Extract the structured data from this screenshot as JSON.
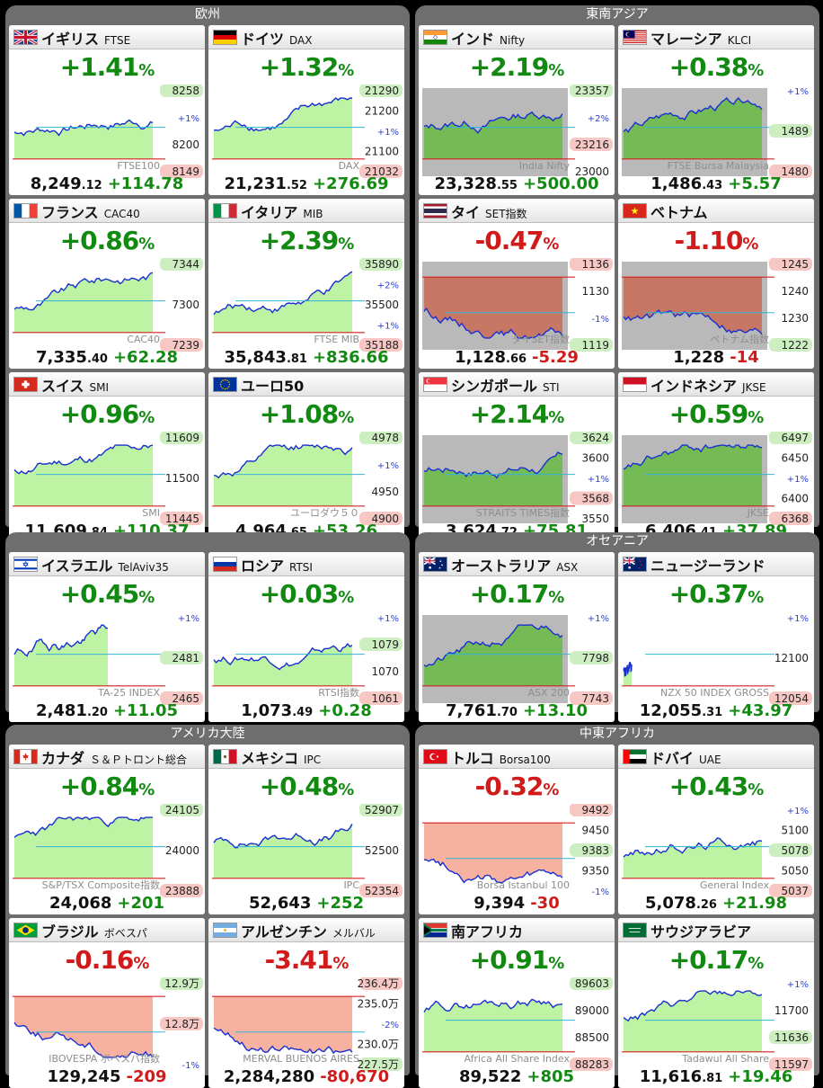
{
  "colors": {
    "up": "#128a12",
    "down": "#d11a1a"
  },
  "sections": [
    {
      "title": "欧州",
      "cards": [
        {
          "name": "イギリス",
          "code": "FTSE",
          "flag": "uk",
          "pct": "+1.41",
          "unit": "%",
          "price_int": "8,249",
          "price_dec": ".12",
          "change": "+114.78",
          "dir": "up",
          "labels": [
            "8258",
            "+1%",
            "8200",
            "8149"
          ],
          "watermark": "FTSE100",
          "series": [
            0.3,
            0.35,
            0.6,
            0.4,
            0.5,
            0.45,
            0.55,
            0.5,
            0.58,
            0.52,
            0.6,
            0.55,
            0.5,
            0.58,
            0.45,
            0.5,
            0.6,
            0.55,
            0.48,
            0.52,
            0.58,
            0.55,
            0.6,
            0.5,
            0.7,
            0.75,
            0.8,
            0.85,
            0.92,
            0.9,
            0.95,
            0.92,
            0.94
          ],
          "base": 0.22
        },
        {
          "name": "ドイツ",
          "code": "DAX",
          "flag": "de",
          "pct": "+1.32",
          "unit": "%",
          "price_int": "21,231",
          "price_dec": ".52",
          "change": "+276.69",
          "dir": "up",
          "labels": [
            "21290",
            "21200",
            "21100",
            "21032"
          ],
          "watermark": "DAX",
          "series": [
            0.5,
            0.6,
            0.75,
            0.55,
            0.7,
            0.85,
            0.65,
            0.9,
            0.7,
            0.6,
            0.8,
            0.65,
            0.55,
            0.45,
            0.3,
            0.5,
            0.65,
            0.55,
            0.7,
            0.8,
            0.6,
            0.75,
            0.65,
            0.55,
            0.7,
            0.85,
            0.9,
            0.8,
            0.75,
            0.82,
            0.78
          ],
          "base": 0.18
        }
      ]
    },
    {
      "title": "東南アジア",
      "cards": [
        {
          "name": "インド",
          "code": "Nifty",
          "flag": "in",
          "pct": "+2.19",
          "unit": "%",
          "price_int": "23,328",
          "price_dec": ".55",
          "change": "+500.00",
          "dir": "up",
          "labels": [
            "23357",
            "+2%",
            "23216",
            "23000"
          ],
          "watermark": "India Nifty",
          "series": [
            0.85,
            0.8,
            0.78,
            0.8,
            0.79,
            0.8,
            0.78,
            0.79,
            0.8,
            0.79,
            0.81,
            0.8,
            0.79,
            0.8,
            0.8,
            0.79,
            0.8,
            0.8,
            0.81
          ],
          "base": 0.0,
          "gray": true,
          "cut": 0.72
        },
        {
          "name": "マレーシア",
          "code": "KLCI",
          "flag": "my",
          "pct": "+0.38",
          "unit": "%",
          "price_int": "1,486",
          "price_dec": ".43",
          "change": "+5.57",
          "dir": "up",
          "labels": [
            "+1%",
            "1489",
            "1480"
          ],
          "watermark": "FTSE Bursa Malaysia",
          "series": [
            0.45,
            0.4,
            0.3,
            0.25,
            0.2,
            0.1,
            0.3,
            0.25,
            0.35,
            0.3,
            0.33,
            0.32,
            0.35,
            0.4,
            0.38,
            0.42,
            0.45,
            0.5,
            0.48,
            0.4,
            0.35
          ],
          "base": 0.1,
          "gray": true,
          "cut": 0.62
        }
      ]
    }
  ]
}
